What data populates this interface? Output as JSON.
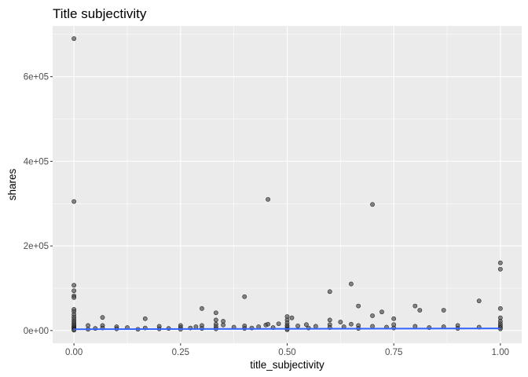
{
  "chart_data": {
    "type": "scatter",
    "title": "Title subjectivity",
    "xlabel": "title_subjectivity",
    "ylabel": "shares",
    "xlim": [
      -0.05,
      1.05
    ],
    "ylim": [
      -30000,
      720000
    ],
    "x_ticks": [
      0.0,
      0.25,
      0.5,
      0.75,
      1.0
    ],
    "x_tick_labels": [
      "0.00",
      "0.25",
      "0.50",
      "0.75",
      "1.00"
    ],
    "y_ticks": [
      0,
      200000,
      400000,
      600000
    ],
    "y_tick_labels": [
      "0e+00",
      "2e+05",
      "4e+05",
      "6e+05"
    ],
    "grid": true,
    "colors": {
      "panel": "#ebebeb",
      "grid_major": "#ffffff",
      "point_fill": "#555555",
      "point_stroke": "#000000",
      "trend": "#3366ff"
    },
    "points": [
      {
        "x": 0.0,
        "y": 690000
      },
      {
        "x": 0.0,
        "y": 305000
      },
      {
        "x": 0.0,
        "y": 107000
      },
      {
        "x": 0.0,
        "y": 94000
      },
      {
        "x": 0.0,
        "y": 82000
      },
      {
        "x": 0.0,
        "y": 78000
      },
      {
        "x": 0.0,
        "y": 50000
      },
      {
        "x": 0.0,
        "y": 45000
      },
      {
        "x": 0.0,
        "y": 38000
      },
      {
        "x": 0.0,
        "y": 32000
      },
      {
        "x": 0.0,
        "y": 27000
      },
      {
        "x": 0.0,
        "y": 22000
      },
      {
        "x": 0.0,
        "y": 18000
      },
      {
        "x": 0.0,
        "y": 14000
      },
      {
        "x": 0.0,
        "y": 11000
      },
      {
        "x": 0.0,
        "y": 8000
      },
      {
        "x": 0.0,
        "y": 6000
      },
      {
        "x": 0.0,
        "y": 4000
      },
      {
        "x": 0.0,
        "y": 2000
      },
      {
        "x": 0.0,
        "y": 1000
      },
      {
        "x": 0.033,
        "y": 12000
      },
      {
        "x": 0.033,
        "y": 3000
      },
      {
        "x": 0.05,
        "y": 5000
      },
      {
        "x": 0.067,
        "y": 31000
      },
      {
        "x": 0.067,
        "y": 12000
      },
      {
        "x": 0.067,
        "y": 6000
      },
      {
        "x": 0.1,
        "y": 9000
      },
      {
        "x": 0.1,
        "y": 4000
      },
      {
        "x": 0.125,
        "y": 7000
      },
      {
        "x": 0.15,
        "y": 3000
      },
      {
        "x": 0.167,
        "y": 28000
      },
      {
        "x": 0.167,
        "y": 6000
      },
      {
        "x": 0.2,
        "y": 10000
      },
      {
        "x": 0.2,
        "y": 4000
      },
      {
        "x": 0.222,
        "y": 5000
      },
      {
        "x": 0.25,
        "y": 12000
      },
      {
        "x": 0.25,
        "y": 7000
      },
      {
        "x": 0.25,
        "y": 3000
      },
      {
        "x": 0.273,
        "y": 6000
      },
      {
        "x": 0.286,
        "y": 9000
      },
      {
        "x": 0.3,
        "y": 52000
      },
      {
        "x": 0.3,
        "y": 12000
      },
      {
        "x": 0.3,
        "y": 5000
      },
      {
        "x": 0.333,
        "y": 42000
      },
      {
        "x": 0.333,
        "y": 25000
      },
      {
        "x": 0.333,
        "y": 15000
      },
      {
        "x": 0.333,
        "y": 9000
      },
      {
        "x": 0.333,
        "y": 4000
      },
      {
        "x": 0.35,
        "y": 22000
      },
      {
        "x": 0.35,
        "y": 13000
      },
      {
        "x": 0.375,
        "y": 8000
      },
      {
        "x": 0.4,
        "y": 80000
      },
      {
        "x": 0.4,
        "y": 11000
      },
      {
        "x": 0.4,
        "y": 5000
      },
      {
        "x": 0.417,
        "y": 6000
      },
      {
        "x": 0.433,
        "y": 9000
      },
      {
        "x": 0.45,
        "y": 13000
      },
      {
        "x": 0.455,
        "y": 310000
      },
      {
        "x": 0.455,
        "y": 15000
      },
      {
        "x": 0.467,
        "y": 7000
      },
      {
        "x": 0.48,
        "y": 16000
      },
      {
        "x": 0.5,
        "y": 33000
      },
      {
        "x": 0.5,
        "y": 25000
      },
      {
        "x": 0.5,
        "y": 18000
      },
      {
        "x": 0.5,
        "y": 12000
      },
      {
        "x": 0.5,
        "y": 8000
      },
      {
        "x": 0.5,
        "y": 4000
      },
      {
        "x": 0.5,
        "y": 2000
      },
      {
        "x": 0.511,
        "y": 30000
      },
      {
        "x": 0.525,
        "y": 11000
      },
      {
        "x": 0.545,
        "y": 14000
      },
      {
        "x": 0.55,
        "y": 6000
      },
      {
        "x": 0.567,
        "y": 10000
      },
      {
        "x": 0.6,
        "y": 92000
      },
      {
        "x": 0.6,
        "y": 25000
      },
      {
        "x": 0.6,
        "y": 14000
      },
      {
        "x": 0.6,
        "y": 7000
      },
      {
        "x": 0.625,
        "y": 20000
      },
      {
        "x": 0.633,
        "y": 9000
      },
      {
        "x": 0.65,
        "y": 110000
      },
      {
        "x": 0.65,
        "y": 15000
      },
      {
        "x": 0.667,
        "y": 58000
      },
      {
        "x": 0.667,
        "y": 12000
      },
      {
        "x": 0.667,
        "y": 5000
      },
      {
        "x": 0.7,
        "y": 298000
      },
      {
        "x": 0.7,
        "y": 35000
      },
      {
        "x": 0.7,
        "y": 10000
      },
      {
        "x": 0.722,
        "y": 44000
      },
      {
        "x": 0.733,
        "y": 8000
      },
      {
        "x": 0.75,
        "y": 28000
      },
      {
        "x": 0.75,
        "y": 14000
      },
      {
        "x": 0.75,
        "y": 6000
      },
      {
        "x": 0.8,
        "y": 58000
      },
      {
        "x": 0.8,
        "y": 10000
      },
      {
        "x": 0.811,
        "y": 48000
      },
      {
        "x": 0.833,
        "y": 7000
      },
      {
        "x": 0.867,
        "y": 48000
      },
      {
        "x": 0.867,
        "y": 9000
      },
      {
        "x": 0.9,
        "y": 12000
      },
      {
        "x": 0.9,
        "y": 5000
      },
      {
        "x": 0.95,
        "y": 70000
      },
      {
        "x": 0.95,
        "y": 8000
      },
      {
        "x": 1.0,
        "y": 160000
      },
      {
        "x": 1.0,
        "y": 145000
      },
      {
        "x": 1.0,
        "y": 52000
      },
      {
        "x": 1.0,
        "y": 30000
      },
      {
        "x": 1.0,
        "y": 22000
      },
      {
        "x": 1.0,
        "y": 16000
      },
      {
        "x": 1.0,
        "y": 11000
      },
      {
        "x": 1.0,
        "y": 7000
      },
      {
        "x": 1.0,
        "y": 4000
      }
    ],
    "trend": {
      "method": "linear",
      "from": {
        "x": 0.0,
        "y": 3000
      },
      "to": {
        "x": 1.0,
        "y": 5000
      }
    }
  }
}
